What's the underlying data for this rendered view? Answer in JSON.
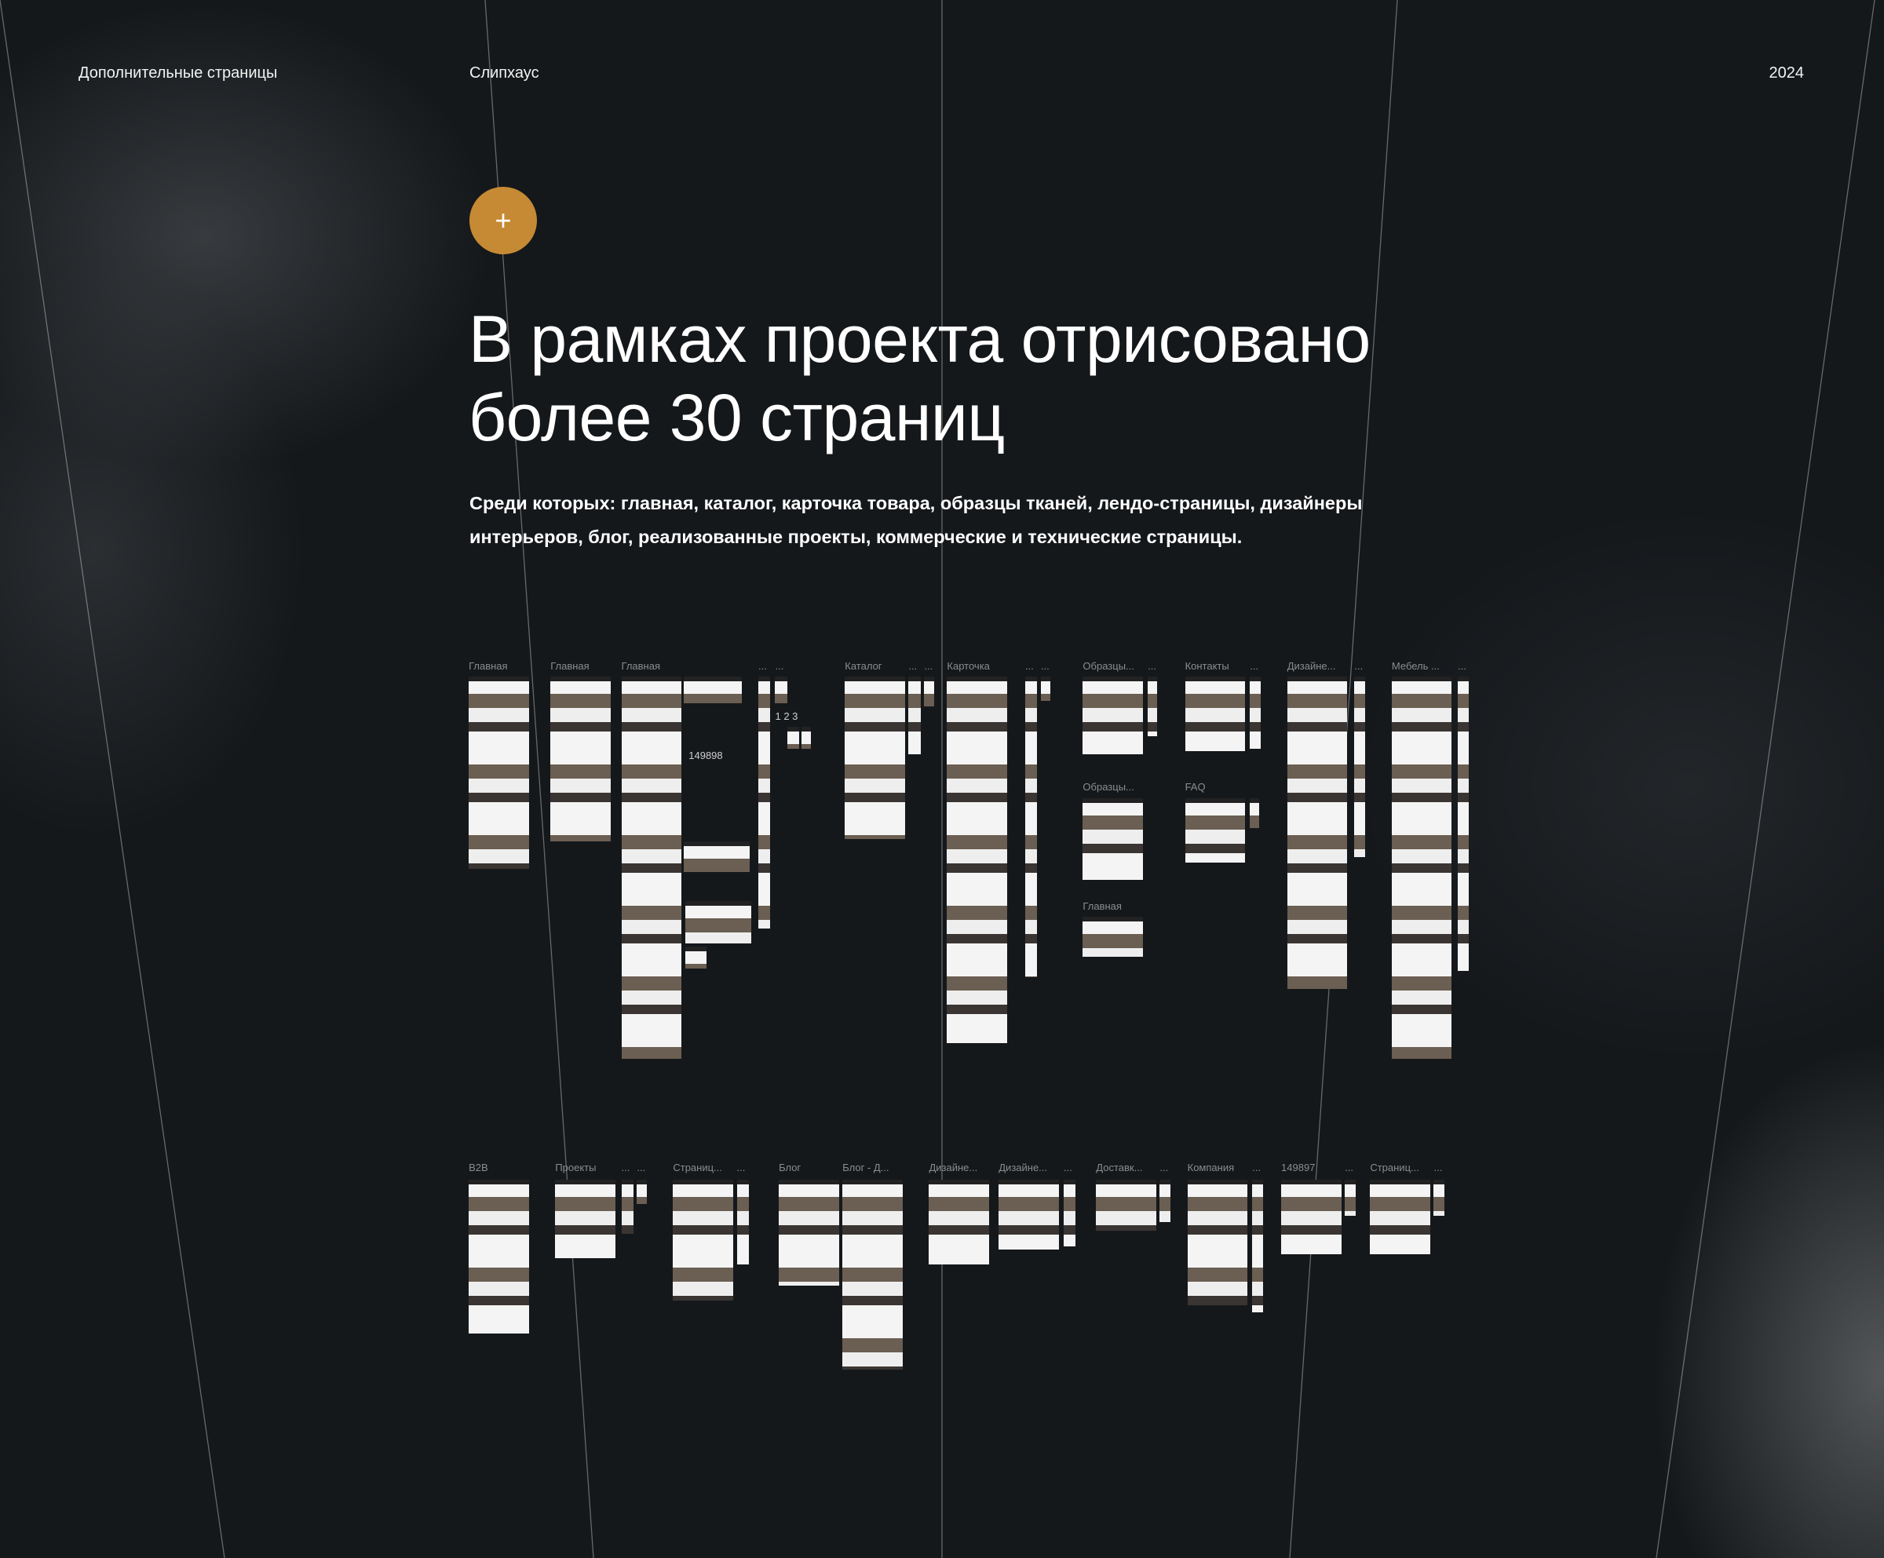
{
  "header": {
    "section": "Дополнительные страницы",
    "project": "Слипхаус",
    "year": "2024"
  },
  "plus_button": {
    "icon": "plus-icon",
    "label": "+",
    "color": "#c68a34"
  },
  "headline": "В рамках проекта отрисовано более 30 страниц",
  "lead": "Среди которых: главная, каталог, карточка товара, образцы тканей, лендо-страницы, дизайнеры интерьеров, блог, реализованные проекты, коммерческие и технические страницы.",
  "row1": [
    "Главная",
    "Главная",
    "Главная",
    "...",
    "...",
    "Каталог",
    "...",
    "...",
    "Карточка",
    "...",
    "...",
    "Образцы...",
    "...",
    "Контакты",
    "...",
    "Дизайне...",
    "...",
    "Мебель ...",
    "..."
  ],
  "row1_sub": [
    "Образцы...",
    "Главная",
    "FAQ"
  ],
  "row2": [
    "B2B",
    "Проекты",
    "...",
    "...",
    "Страниц...",
    "...",
    "Блог",
    "Блог - Д...",
    "Дизайне...",
    "Дизайне...",
    "...",
    "Доставк...",
    "...",
    "Компания",
    "...",
    "149897",
    "...",
    "Страниц...",
    "..."
  ],
  "notes": [
    "149898",
    "1 2 3"
  ],
  "colors": {
    "background": "#15181b",
    "accent": "#c68a34"
  }
}
